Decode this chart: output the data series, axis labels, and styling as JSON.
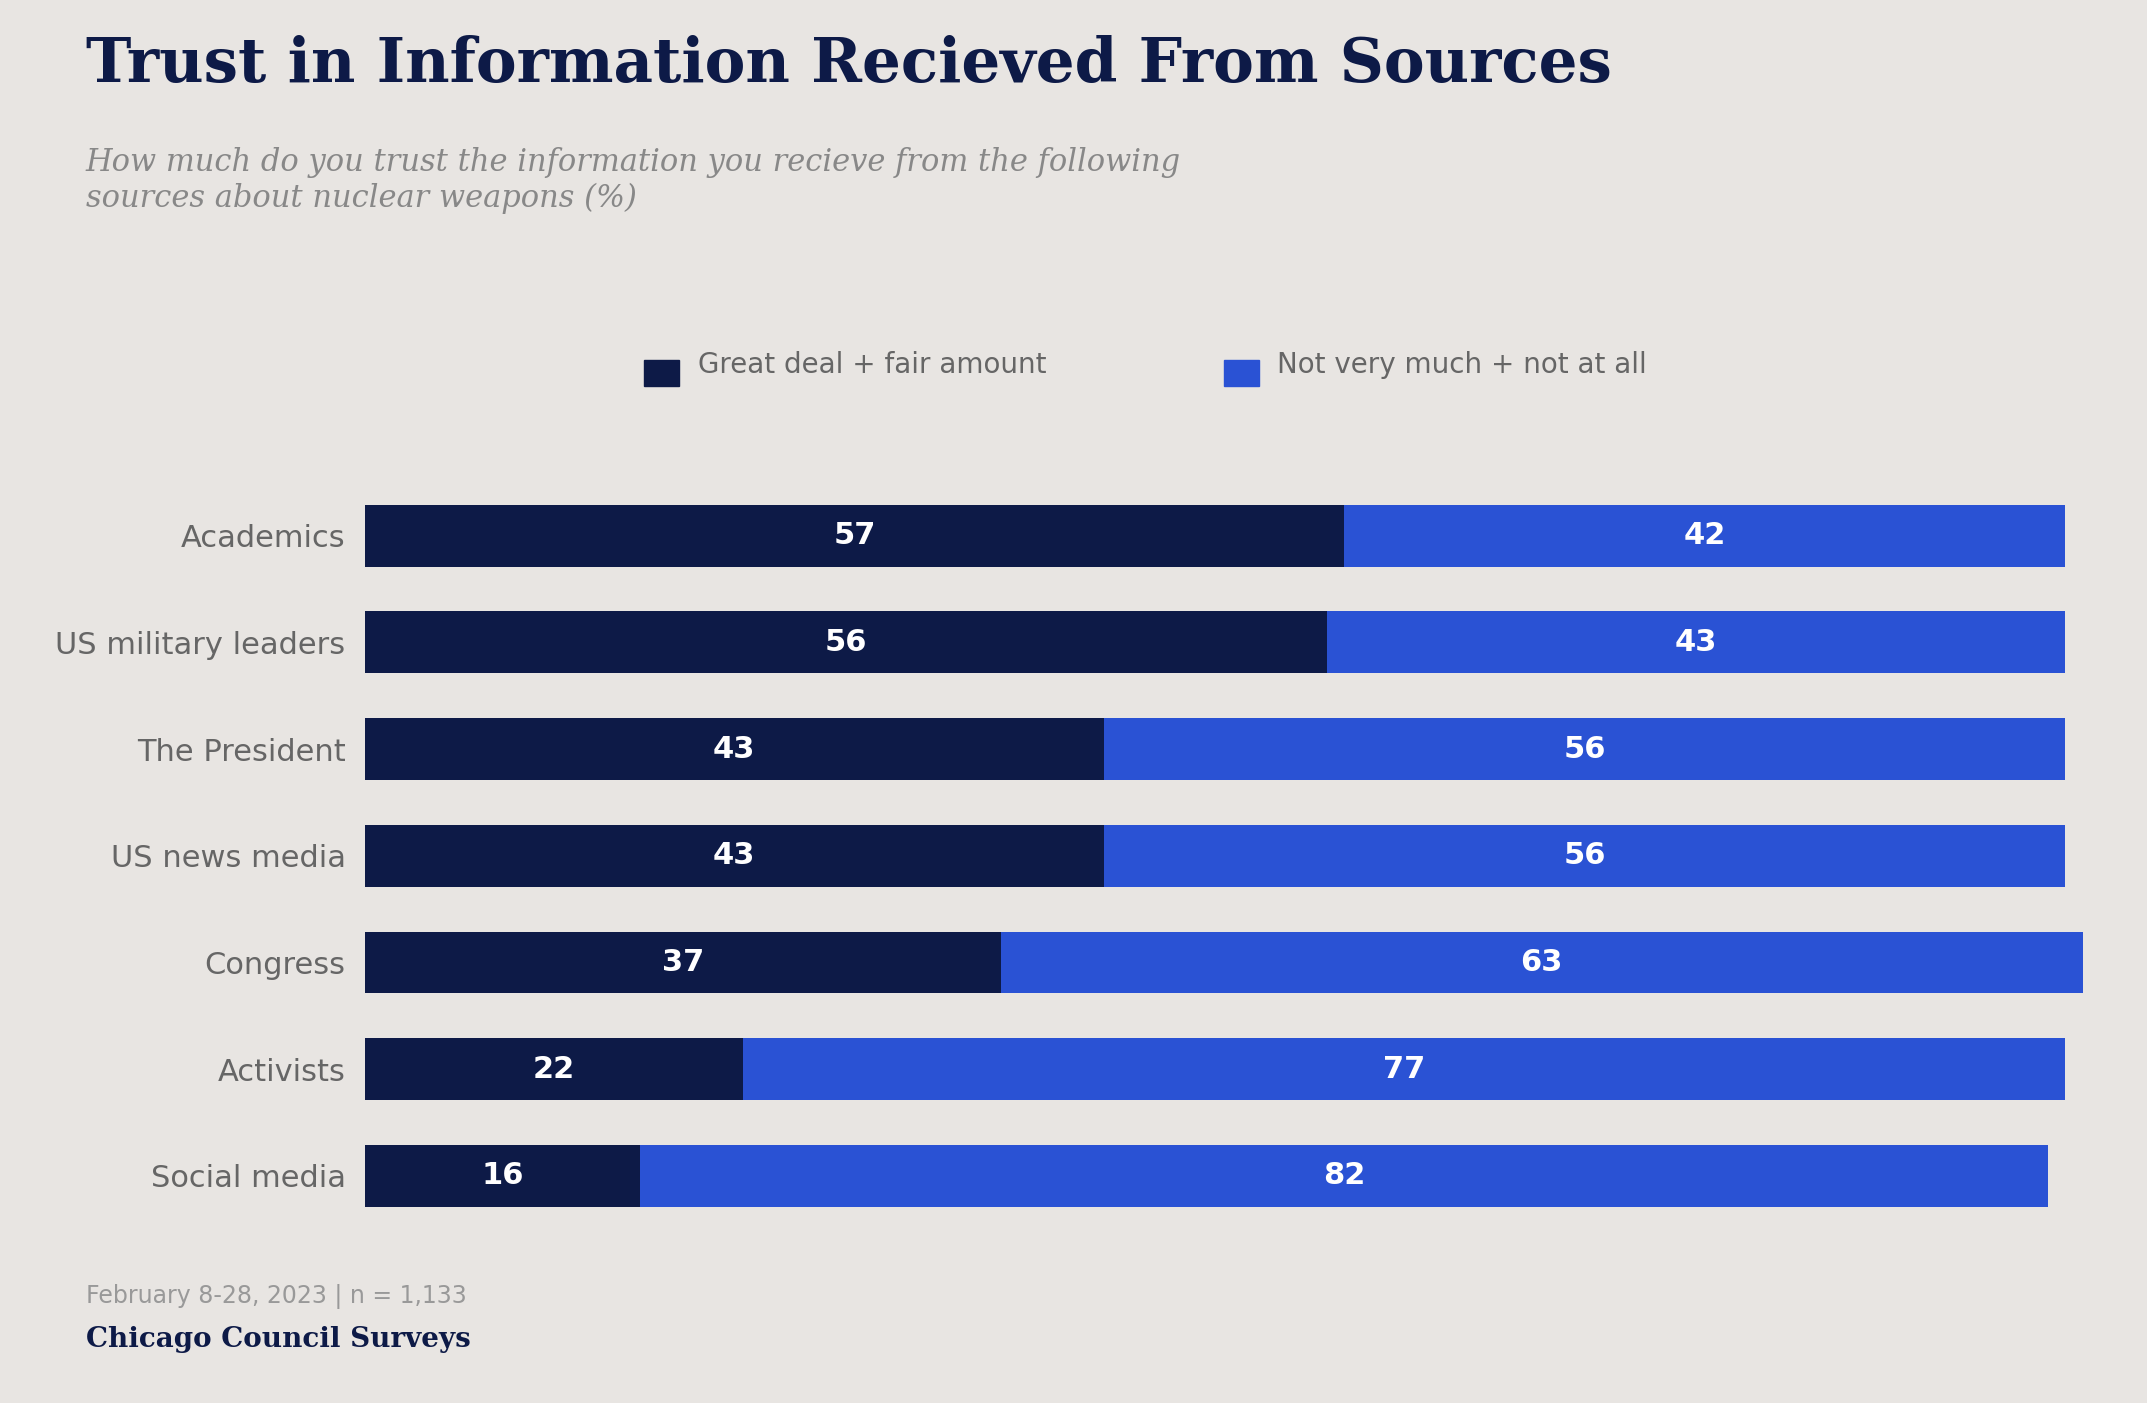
{
  "title": "Trust in Information Recieved From Sources",
  "subtitle": "How much do you trust the information you recieve from the following\nsources about nuclear weapons (%)",
  "categories": [
    "Academics",
    "US military leaders",
    "The President",
    "US news media",
    "Congress",
    "Activists",
    "Social media"
  ],
  "great_deal": [
    57,
    56,
    43,
    43,
    37,
    22,
    16
  ],
  "not_very_much": [
    42,
    43,
    56,
    56,
    63,
    77,
    82
  ],
  "color_dark": "#0d1a47",
  "color_bright": "#2a52d4",
  "legend_label_dark": "Great deal + fair amount",
  "legend_label_bright": "Not very much + not at all",
  "footnote": "February 8-28, 2023 | n = 1,133",
  "source": "Chicago Council Surveys",
  "background_color": "#e8e5e2",
  "title_color": "#0d1a47",
  "subtitle_color": "#888888",
  "label_color": "#666666",
  "bar_text_color": "#ffffff",
  "title_fontsize": 44,
  "subtitle_fontsize": 22,
  "category_fontsize": 22,
  "bar_label_fontsize": 22,
  "legend_fontsize": 20,
  "footnote_fontsize": 17,
  "source_fontsize": 20
}
